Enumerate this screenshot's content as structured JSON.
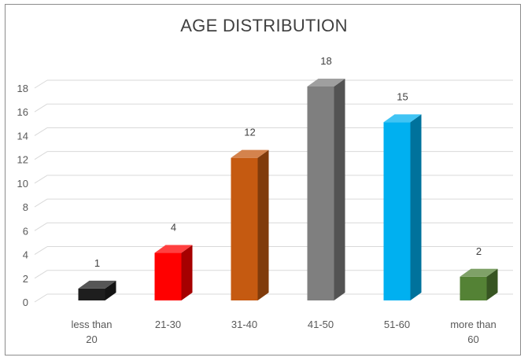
{
  "chart_data": {
    "type": "bar",
    "title": "AGE DISTRIBUTION",
    "xlabel": "",
    "ylabel": "",
    "categories": [
      [
        "less than",
        "20"
      ],
      [
        "21-30"
      ],
      [
        "31-40"
      ],
      [
        "41-50"
      ],
      [
        "51-60"
      ],
      [
        "more than",
        "60"
      ]
    ],
    "values": [
      1,
      4,
      12,
      18,
      15,
      2
    ],
    "data_labels": [
      "1",
      "4",
      "12",
      "18",
      "15",
      "2"
    ],
    "colors": [
      "#1e1e1e",
      "#ff0000",
      "#c55a11",
      "#7f7f7f",
      "#00b0f0",
      "#548235"
    ],
    "ylim": [
      0,
      18
    ],
    "yticks": [
      0,
      2,
      4,
      6,
      8,
      10,
      12,
      14,
      16,
      18
    ],
    "grid": true,
    "legend": "none"
  }
}
